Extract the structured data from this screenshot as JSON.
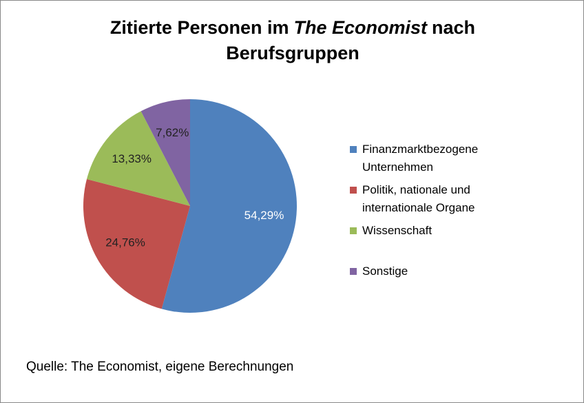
{
  "chart_data": {
    "type": "pie",
    "title_parts": [
      "Zitierte Personen im",
      "The Economist",
      "nach",
      "Berufsgruppen"
    ],
    "categories": [
      "Finanzmarktbezogene Unternehmen",
      "Politik, nationale und internationale Organe",
      "Wissenschaft",
      "Sonstige"
    ],
    "values": [
      54.29,
      24.76,
      13.33,
      7.62
    ],
    "value_labels": [
      "54,29%",
      "24,76%",
      "13,33%",
      "7,62%"
    ],
    "colors": [
      "#4f81bd",
      "#c0504d",
      "#9bbb59",
      "#8064a2"
    ],
    "legend": "right",
    "source": "Quelle: The Economist, eigene Berechnungen"
  }
}
